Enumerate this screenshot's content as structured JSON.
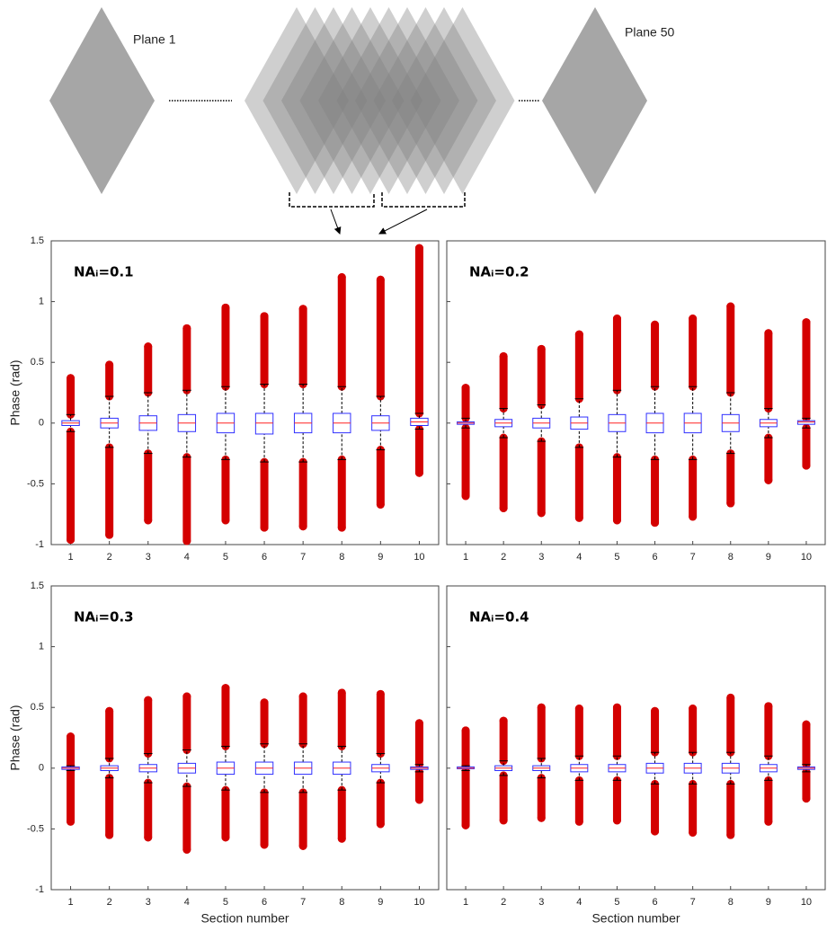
{
  "diagram": {
    "labels": [
      "Plane 1",
      "Plane 50"
    ]
  },
  "chart_data": [
    {
      "type": "box",
      "title": "NAᵢ=0.1",
      "ylabel": "Phase (rad)",
      "categories": [
        "1",
        "2",
        "3",
        "4",
        "5",
        "6",
        "7",
        "8",
        "9",
        "10"
      ],
      "ylim": [
        -1,
        1.5
      ],
      "yticks": [
        -1,
        -0.5,
        0,
        0.5,
        1,
        1.5
      ],
      "box_color": "#3030ff",
      "median_color": "#ff2020",
      "outlier_color": "#d40000",
      "boxes": [
        {
          "min": -0.96,
          "whisker_low": -0.07,
          "q1": -0.02,
          "median": 0,
          "q3": 0.02,
          "whisker_high": 0.07,
          "max": 0.37
        },
        {
          "min": -0.92,
          "whisker_low": -0.2,
          "q1": -0.04,
          "median": 0,
          "q3": 0.04,
          "whisker_high": 0.22,
          "max": 0.48
        },
        {
          "min": -0.8,
          "whisker_low": -0.25,
          "q1": -0.06,
          "median": 0,
          "q3": 0.06,
          "whisker_high": 0.25,
          "max": 0.63
        },
        {
          "min": -0.97,
          "whisker_low": -0.28,
          "q1": -0.07,
          "median": 0,
          "q3": 0.07,
          "whisker_high": 0.27,
          "max": 0.78
        },
        {
          "min": -0.8,
          "whisker_low": -0.3,
          "q1": -0.08,
          "median": 0,
          "q3": 0.08,
          "whisker_high": 0.3,
          "max": 0.95
        },
        {
          "min": -0.86,
          "whisker_low": -0.32,
          "q1": -0.09,
          "median": 0,
          "q3": 0.08,
          "whisker_high": 0.32,
          "max": 0.88
        },
        {
          "min": -0.85,
          "whisker_low": -0.32,
          "q1": -0.08,
          "median": 0,
          "q3": 0.08,
          "whisker_high": 0.32,
          "max": 0.94
        },
        {
          "min": -0.86,
          "whisker_low": -0.3,
          "q1": -0.08,
          "median": 0,
          "q3": 0.08,
          "whisker_high": 0.3,
          "max": 1.2
        },
        {
          "min": -0.67,
          "whisker_low": -0.22,
          "q1": -0.06,
          "median": 0,
          "q3": 0.06,
          "whisker_high": 0.22,
          "max": 1.18
        },
        {
          "min": -0.41,
          "whisker_low": -0.05,
          "q1": -0.02,
          "median": 0.01,
          "q3": 0.04,
          "whisker_high": 0.08,
          "max": 1.44
        }
      ]
    },
    {
      "type": "box",
      "title": "NAᵢ=0.2",
      "categories": [
        "1",
        "2",
        "3",
        "4",
        "5",
        "6",
        "7",
        "8",
        "9",
        "10"
      ],
      "ylim": [
        -1,
        1.5
      ],
      "yticks": [
        -1,
        -0.5,
        0,
        0.5,
        1,
        1.5
      ],
      "box_color": "#3030ff",
      "median_color": "#ff2020",
      "outlier_color": "#d40000",
      "boxes": [
        {
          "min": -0.6,
          "whisker_low": -0.04,
          "q1": -0.01,
          "median": 0,
          "q3": 0.01,
          "whisker_high": 0.04,
          "max": 0.29
        },
        {
          "min": -0.7,
          "whisker_low": -0.12,
          "q1": -0.03,
          "median": 0,
          "q3": 0.03,
          "whisker_high": 0.12,
          "max": 0.55
        },
        {
          "min": -0.74,
          "whisker_low": -0.15,
          "q1": -0.04,
          "median": 0,
          "q3": 0.04,
          "whisker_high": 0.15,
          "max": 0.61
        },
        {
          "min": -0.78,
          "whisker_low": -0.2,
          "q1": -0.05,
          "median": 0,
          "q3": 0.05,
          "whisker_high": 0.2,
          "max": 0.73
        },
        {
          "min": -0.8,
          "whisker_low": -0.28,
          "q1": -0.07,
          "median": 0,
          "q3": 0.07,
          "whisker_high": 0.27,
          "max": 0.86
        },
        {
          "min": -0.82,
          "whisker_low": -0.3,
          "q1": -0.08,
          "median": 0,
          "q3": 0.08,
          "whisker_high": 0.3,
          "max": 0.81
        },
        {
          "min": -0.77,
          "whisker_low": -0.3,
          "q1": -0.08,
          "median": 0,
          "q3": 0.08,
          "whisker_high": 0.3,
          "max": 0.86
        },
        {
          "min": -0.66,
          "whisker_low": -0.25,
          "q1": -0.07,
          "median": 0,
          "q3": 0.07,
          "whisker_high": 0.25,
          "max": 0.96
        },
        {
          "min": -0.47,
          "whisker_low": -0.12,
          "q1": -0.03,
          "median": 0,
          "q3": 0.03,
          "whisker_high": 0.12,
          "max": 0.74
        },
        {
          "min": -0.35,
          "whisker_low": -0.04,
          "q1": -0.01,
          "median": 0.01,
          "q3": 0.02,
          "whisker_high": 0.04,
          "max": 0.83
        }
      ]
    },
    {
      "type": "box",
      "title": "NAᵢ=0.3",
      "ylabel": "Phase (rad)",
      "xlabel": "Section number",
      "categories": [
        "1",
        "2",
        "3",
        "4",
        "5",
        "6",
        "7",
        "8",
        "9",
        "10"
      ],
      "ylim": [
        -1,
        1.5
      ],
      "yticks": [
        -1,
        -0.5,
        0,
        0.5,
        1,
        1.5
      ],
      "box_color": "#3030ff",
      "median_color": "#ff2020",
      "outlier_color": "#d40000",
      "boxes": [
        {
          "min": -0.44,
          "whisker_low": -0.02,
          "q1": -0.01,
          "median": 0,
          "q3": 0.01,
          "whisker_high": 0.02,
          "max": 0.26
        },
        {
          "min": -0.55,
          "whisker_low": -0.08,
          "q1": -0.02,
          "median": 0,
          "q3": 0.02,
          "whisker_high": 0.08,
          "max": 0.47
        },
        {
          "min": -0.57,
          "whisker_low": -0.12,
          "q1": -0.03,
          "median": 0,
          "q3": 0.03,
          "whisker_high": 0.12,
          "max": 0.56
        },
        {
          "min": -0.67,
          "whisker_low": -0.15,
          "q1": -0.04,
          "median": 0,
          "q3": 0.04,
          "whisker_high": 0.15,
          "max": 0.59
        },
        {
          "min": -0.57,
          "whisker_low": -0.18,
          "q1": -0.05,
          "median": 0,
          "q3": 0.05,
          "whisker_high": 0.18,
          "max": 0.66
        },
        {
          "min": -0.63,
          "whisker_low": -0.2,
          "q1": -0.05,
          "median": 0,
          "q3": 0.05,
          "whisker_high": 0.2,
          "max": 0.54
        },
        {
          "min": -0.64,
          "whisker_low": -0.2,
          "q1": -0.05,
          "median": 0,
          "q3": 0.05,
          "whisker_high": 0.2,
          "max": 0.59
        },
        {
          "min": -0.58,
          "whisker_low": -0.18,
          "q1": -0.05,
          "median": 0,
          "q3": 0.05,
          "whisker_high": 0.18,
          "max": 0.62
        },
        {
          "min": -0.46,
          "whisker_low": -0.12,
          "q1": -0.03,
          "median": 0,
          "q3": 0.03,
          "whisker_high": 0.12,
          "max": 0.61
        },
        {
          "min": -0.26,
          "whisker_low": -0.03,
          "q1": -0.01,
          "median": 0,
          "q3": 0.01,
          "whisker_high": 0.03,
          "max": 0.37
        }
      ]
    },
    {
      "type": "box",
      "title": "NAᵢ=0.4",
      "xlabel": "Section number",
      "categories": [
        "1",
        "2",
        "3",
        "4",
        "5",
        "6",
        "7",
        "8",
        "9",
        "10"
      ],
      "ylim": [
        -1,
        1.5
      ],
      "yticks": [
        -1,
        -0.5,
        0,
        0.5,
        1,
        1.5
      ],
      "box_color": "#3030ff",
      "median_color": "#ff2020",
      "outlier_color": "#d40000",
      "boxes": [
        {
          "min": -0.47,
          "whisker_low": -0.02,
          "q1": -0.005,
          "median": 0,
          "q3": 0.01,
          "whisker_high": 0.02,
          "max": 0.31
        },
        {
          "min": -0.43,
          "whisker_low": -0.06,
          "q1": -0.02,
          "median": 0,
          "q3": 0.02,
          "whisker_high": 0.06,
          "max": 0.39
        },
        {
          "min": -0.41,
          "whisker_low": -0.08,
          "q1": -0.02,
          "median": 0,
          "q3": 0.02,
          "whisker_high": 0.08,
          "max": 0.5
        },
        {
          "min": -0.44,
          "whisker_low": -0.1,
          "q1": -0.03,
          "median": 0,
          "q3": 0.03,
          "whisker_high": 0.1,
          "max": 0.49
        },
        {
          "min": -0.43,
          "whisker_low": -0.1,
          "q1": -0.03,
          "median": 0,
          "q3": 0.03,
          "whisker_high": 0.1,
          "max": 0.5
        },
        {
          "min": -0.52,
          "whisker_low": -0.13,
          "q1": -0.04,
          "median": 0,
          "q3": 0.04,
          "whisker_high": 0.13,
          "max": 0.47
        },
        {
          "min": -0.53,
          "whisker_low": -0.13,
          "q1": -0.04,
          "median": 0,
          "q3": 0.04,
          "whisker_high": 0.13,
          "max": 0.49
        },
        {
          "min": -0.55,
          "whisker_low": -0.13,
          "q1": -0.04,
          "median": 0,
          "q3": 0.04,
          "whisker_high": 0.13,
          "max": 0.58
        },
        {
          "min": -0.44,
          "whisker_low": -0.1,
          "q1": -0.03,
          "median": 0,
          "q3": 0.03,
          "whisker_high": 0.1,
          "max": 0.51
        },
        {
          "min": -0.25,
          "whisker_low": -0.03,
          "q1": -0.01,
          "median": 0,
          "q3": 0.01,
          "whisker_high": 0.03,
          "max": 0.36
        }
      ]
    }
  ]
}
